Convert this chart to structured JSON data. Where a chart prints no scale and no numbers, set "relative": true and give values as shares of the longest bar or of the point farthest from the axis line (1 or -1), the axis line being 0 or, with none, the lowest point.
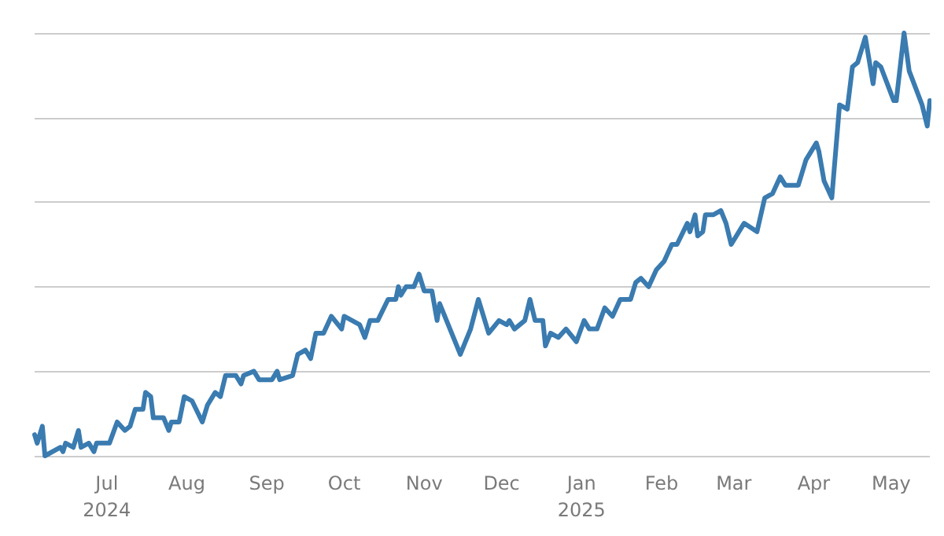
{
  "chart_data": {
    "type": "line",
    "relative": true,
    "grid": "y",
    "marker": "none",
    "line_style": "solid",
    "xlim": [
      "2024-06-03",
      "2025-05-16"
    ],
    "xticks": [
      {
        "value": "2024-07-01",
        "label": "Jul\n2024"
      },
      {
        "value": "2024-08-01",
        "label": "Aug"
      },
      {
        "value": "2024-09-01",
        "label": "Sep"
      },
      {
        "value": "2024-10-01",
        "label": "Oct"
      },
      {
        "value": "2024-11-01",
        "label": "Nov"
      },
      {
        "value": "2024-12-01",
        "label": "Dec"
      },
      {
        "value": "2025-01-01",
        "label": "Jan\n2025"
      },
      {
        "value": "2025-02-01",
        "label": "Feb"
      },
      {
        "value": "2025-03-01",
        "label": "Mar"
      },
      {
        "value": "2025-04-01",
        "label": "Apr"
      },
      {
        "value": "2025-05-01",
        "label": "May"
      }
    ],
    "x": [
      "2024-06-03",
      "2024-06-04",
      "2024-06-06",
      "2024-06-07",
      "2024-06-13",
      "2024-06-14",
      "2024-06-15",
      "2024-06-18",
      "2024-06-20",
      "2024-06-21",
      "2024-06-24",
      "2024-06-26",
      "2024-06-27",
      "2024-07-02",
      "2024-07-05",
      "2024-07-08",
      "2024-07-10",
      "2024-07-12",
      "2024-07-15",
      "2024-07-16",
      "2024-07-18",
      "2024-07-19",
      "2024-07-23",
      "2024-07-25",
      "2024-07-26",
      "2024-07-29",
      "2024-07-31",
      "2024-08-03",
      "2024-08-07",
      "2024-08-09",
      "2024-08-12",
      "2024-08-14",
      "2024-08-16",
      "2024-08-20",
      "2024-08-22",
      "2024-08-23",
      "2024-08-27",
      "2024-08-29",
      "2024-09-03",
      "2024-09-05",
      "2024-09-06",
      "2024-09-11",
      "2024-09-13",
      "2024-09-16",
      "2024-09-18",
      "2024-09-20",
      "2024-09-23",
      "2024-09-26",
      "2024-09-30",
      "2024-10-01",
      "2024-10-07",
      "2024-10-09",
      "2024-10-11",
      "2024-10-14",
      "2024-10-18",
      "2024-10-21",
      "2024-10-22",
      "2024-10-23",
      "2024-10-25",
      "2024-10-28",
      "2024-10-30",
      "2024-11-01",
      "2024-11-04",
      "2024-11-06",
      "2024-11-07",
      "2024-11-15",
      "2024-11-19",
      "2024-11-22",
      "2024-11-26",
      "2024-11-30",
      "2024-12-03",
      "2024-12-04",
      "2024-12-06",
      "2024-12-10",
      "2024-12-12",
      "2024-12-14",
      "2024-12-17",
      "2024-12-18",
      "2024-12-20",
      "2024-12-23",
      "2024-12-26",
      "2024-12-30",
      "2025-01-02",
      "2025-01-04",
      "2025-01-07",
      "2025-01-10",
      "2025-01-13",
      "2025-01-16",
      "2025-01-20",
      "2025-01-22",
      "2025-01-24",
      "2025-01-27",
      "2025-01-30",
      "2025-02-02",
      "2025-02-05",
      "2025-02-07",
      "2025-02-11",
      "2025-02-12",
      "2025-02-14",
      "2025-02-15",
      "2025-02-17",
      "2025-02-18",
      "2025-02-21",
      "2025-02-24",
      "2025-02-26",
      "2025-02-28",
      "2025-03-05",
      "2025-03-10",
      "2025-03-13",
      "2025-03-16",
      "2025-03-19",
      "2025-03-21",
      "2025-03-25",
      "2025-03-26",
      "2025-03-29",
      "2025-03-31",
      "2025-04-02",
      "2025-04-03",
      "2025-04-05",
      "2025-04-08",
      "2025-04-11",
      "2025-04-14",
      "2025-04-16",
      "2025-04-18",
      "2025-04-21",
      "2025-04-24",
      "2025-04-25",
      "2025-04-27",
      "2025-05-02",
      "2025-05-03",
      "2025-05-06",
      "2025-05-08",
      "2025-05-13",
      "2025-05-15",
      "2025-05-16"
    ],
    "series": [
      {
        "color": "#3a7bb0",
        "values": [
          0.05,
          0.03,
          0.07,
          0.0,
          0.02,
          0.01,
          0.03,
          0.02,
          0.06,
          0.02,
          0.03,
          0.01,
          0.03,
          0.03,
          0.08,
          0.06,
          0.07,
          0.11,
          0.11,
          0.15,
          0.14,
          0.09,
          0.09,
          0.06,
          0.08,
          0.08,
          0.14,
          0.13,
          0.08,
          0.12,
          0.15,
          0.14,
          0.19,
          0.19,
          0.17,
          0.19,
          0.2,
          0.18,
          0.18,
          0.2,
          0.18,
          0.19,
          0.24,
          0.25,
          0.23,
          0.29,
          0.29,
          0.33,
          0.3,
          0.33,
          0.31,
          0.28,
          0.32,
          0.32,
          0.37,
          0.37,
          0.4,
          0.38,
          0.4,
          0.4,
          0.43,
          0.39,
          0.39,
          0.32,
          0.36,
          0.24,
          0.3,
          0.37,
          0.29,
          0.32,
          0.31,
          0.32,
          0.3,
          0.32,
          0.37,
          0.32,
          0.32,
          0.26,
          0.29,
          0.28,
          0.3,
          0.27,
          0.32,
          0.3,
          0.3,
          0.35,
          0.33,
          0.37,
          0.37,
          0.41,
          0.42,
          0.4,
          0.44,
          0.46,
          0.5,
          0.5,
          0.55,
          0.53,
          0.57,
          0.52,
          0.53,
          0.57,
          0.57,
          0.58,
          0.55,
          0.5,
          0.55,
          0.53,
          0.61,
          0.62,
          0.66,
          0.64,
          0.64,
          0.64,
          0.7,
          0.72,
          0.74,
          0.72,
          0.65,
          0.61,
          0.83,
          0.82,
          0.92,
          0.93,
          0.99,
          0.88,
          0.93,
          0.92,
          0.84,
          0.84,
          1.0,
          0.91,
          0.83,
          0.78,
          0.84
        ]
      }
    ]
  }
}
